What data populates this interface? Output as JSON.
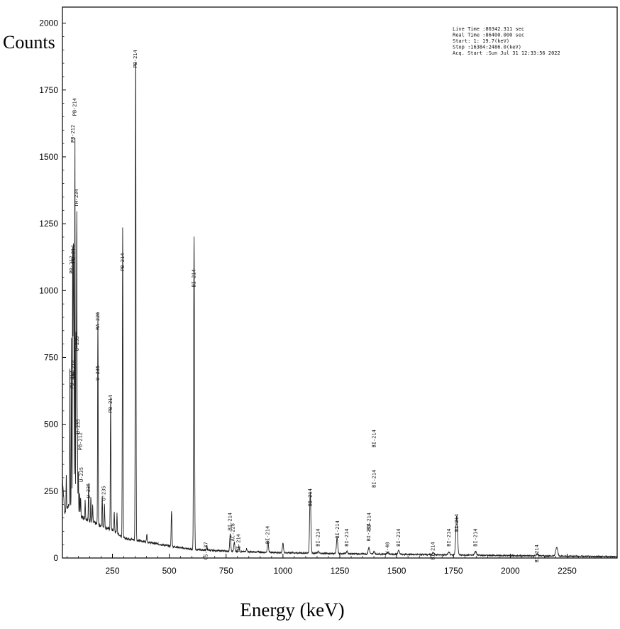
{
  "chart_data": {
    "type": "line",
    "xlabel": "Energy (keV)",
    "ylabel": "Counts",
    "xlim": [
      30,
      2470
    ],
    "ylim": [
      0,
      2060
    ],
    "xticks": [
      250,
      500,
      750,
      1000,
      1250,
      1500,
      1750,
      2000,
      2250
    ],
    "yticks": [
      0,
      250,
      500,
      750,
      1000,
      1250,
      1500,
      1750,
      2000
    ],
    "grid": false,
    "info_box": [
      "Live Time :86342.311 sec",
      "Real Time :86400.000 sec",
      "Start:    1:  19.7(keV)",
      "Stop :16384:2486.0(keV)",
      "Acq. Start :Sun Jul 31 12:33:56 2022"
    ],
    "peaks": [
      {
        "x": 47,
        "y": 320
      },
      {
        "x": 63,
        "y": 720
      },
      {
        "x": 70,
        "y": 820
      },
      {
        "x": 75,
        "y": 1180
      },
      {
        "x": 78,
        "y": 1040
      },
      {
        "x": 80,
        "y": 900
      },
      {
        "x": 85,
        "y": 1600
      },
      {
        "x": 90,
        "y": 820
      },
      {
        "x": 93,
        "y": 1300
      },
      {
        "x": 96,
        "y": 480
      },
      {
        "x": 100,
        "y": 330
      },
      {
        "x": 105,
        "y": 250
      },
      {
        "x": 110,
        "y": 230
      },
      {
        "x": 130,
        "y": 220
      },
      {
        "x": 145,
        "y": 275
      },
      {
        "x": 155,
        "y": 230
      },
      {
        "x": 163,
        "y": 195
      },
      {
        "x": 186,
        "y": 910
      },
      {
        "x": 205,
        "y": 235
      },
      {
        "x": 215,
        "y": 200
      },
      {
        "x": 242,
        "y": 600
      },
      {
        "x": 258,
        "y": 170
      },
      {
        "x": 270,
        "y": 165
      },
      {
        "x": 295,
        "y": 1250
      },
      {
        "x": 352,
        "y": 1920
      },
      {
        "x": 401,
        "y": 90
      },
      {
        "x": 510,
        "y": 175
      },
      {
        "x": 609,
        "y": 1210
      },
      {
        "x": 665,
        "y": 45
      },
      {
        "x": 768,
        "y": 90
      },
      {
        "x": 786,
        "y": 60
      },
      {
        "x": 806,
        "y": 45
      },
      {
        "x": 840,
        "y": 35
      },
      {
        "x": 934,
        "y": 65
      },
      {
        "x": 1000,
        "y": 55
      },
      {
        "x": 1120,
        "y": 250
      },
      {
        "x": 1155,
        "y": 25
      },
      {
        "x": 1238,
        "y": 75
      },
      {
        "x": 1281,
        "y": 25
      },
      {
        "x": 1378,
        "y": 40
      },
      {
        "x": 1401,
        "y": 25
      },
      {
        "x": 1461,
        "y": 22
      },
      {
        "x": 1509,
        "y": 28
      },
      {
        "x": 1661,
        "y": 20
      },
      {
        "x": 1730,
        "y": 22
      },
      {
        "x": 1764,
        "y": 155
      },
      {
        "x": 1847,
        "y": 25
      },
      {
        "x": 2118,
        "y": 15
      },
      {
        "x": 2204,
        "y": 40
      }
    ],
    "continuum": [
      {
        "x": 30,
        "y": 300
      },
      {
        "x": 40,
        "y": 170
      },
      {
        "x": 60,
        "y": 200
      },
      {
        "x": 100,
        "y": 160
      },
      {
        "x": 150,
        "y": 140
      },
      {
        "x": 200,
        "y": 120
      },
      {
        "x": 250,
        "y": 105
      },
      {
        "x": 300,
        "y": 75
      },
      {
        "x": 400,
        "y": 60
      },
      {
        "x": 500,
        "y": 45
      },
      {
        "x": 600,
        "y": 32
      },
      {
        "x": 700,
        "y": 28
      },
      {
        "x": 800,
        "y": 24
      },
      {
        "x": 1000,
        "y": 20
      },
      {
        "x": 1200,
        "y": 17
      },
      {
        "x": 1500,
        "y": 14
      },
      {
        "x": 1800,
        "y": 11
      },
      {
        "x": 2100,
        "y": 8
      },
      {
        "x": 2470,
        "y": 5
      }
    ],
    "annotations": [
      {
        "text": "PB-214",
        "x": 352,
        "y": 1900
      },
      {
        "text": "PB-214",
        "x": 85,
        "y": 1720
      },
      {
        "text": "PB-212",
        "x": 77,
        "y": 1620
      },
      {
        "text": "TH-234",
        "x": 93,
        "y": 1380
      },
      {
        "text": "PB-214",
        "x": 78,
        "y": 1170
      },
      {
        "text": "PB-212",
        "x": 70,
        "y": 1130
      },
      {
        "text": "PB-214",
        "x": 295,
        "y": 1140
      },
      {
        "text": "BI-214",
        "x": 609,
        "y": 1080
      },
      {
        "text": "RA-226",
        "x": 186,
        "y": 920
      },
      {
        "text": "U-235",
        "x": 96,
        "y": 830
      },
      {
        "text": "PB-214",
        "x": 80,
        "y": 740
      },
      {
        "text": "U-235",
        "x": 186,
        "y": 720
      },
      {
        "text": "PB-212",
        "x": 72,
        "y": 700
      },
      {
        "text": "PB-214",
        "x": 242,
        "y": 610
      },
      {
        "text": "U-235",
        "x": 100,
        "y": 520
      },
      {
        "text": "PB-212",
        "x": 110,
        "y": 470
      },
      {
        "text": "U-235",
        "x": 115,
        "y": 340
      },
      {
        "text": "U-235",
        "x": 212,
        "y": 270
      },
      {
        "text": "U-235",
        "x": 145,
        "y": 280
      },
      {
        "text": "BI-214",
        "x": 1401,
        "y": 480
      },
      {
        "text": "BI-214",
        "x": 1401,
        "y": 330
      },
      {
        "text": "BI-214",
        "x": 1380,
        "y": 170
      },
      {
        "text": "BI-214",
        "x": 1120,
        "y": 260
      },
      {
        "text": "BI-214",
        "x": 1765,
        "y": 165
      },
      {
        "text": "BI-214",
        "x": 768,
        "y": 170
      },
      {
        "text": "BI-214",
        "x": 934,
        "y": 120
      },
      {
        "text": "BI-214",
        "x": 1155,
        "y": 110
      },
      {
        "text": "BI-214",
        "x": 1240,
        "y": 140
      },
      {
        "text": "BI-214",
        "x": 1281,
        "y": 110
      },
      {
        "text": "BI-214",
        "x": 1378,
        "y": 130
      },
      {
        "text": "K-40",
        "x": 1461,
        "y": 60
      },
      {
        "text": "BI-214",
        "x": 1509,
        "y": 110
      },
      {
        "text": "BI-214",
        "x": 1661,
        "y": 60
      },
      {
        "text": "BI-214",
        "x": 1730,
        "y": 110
      },
      {
        "text": "BI-214",
        "x": 1847,
        "y": 110
      },
      {
        "text": "BI-214",
        "x": 2118,
        "y": 50
      },
      {
        "text": "CS-137",
        "x": 662,
        "y": 60
      },
      {
        "text": "AC-228",
        "x": 780,
        "y": 130
      },
      {
        "text": "BI-214",
        "x": 806,
        "y": 90
      }
    ]
  }
}
